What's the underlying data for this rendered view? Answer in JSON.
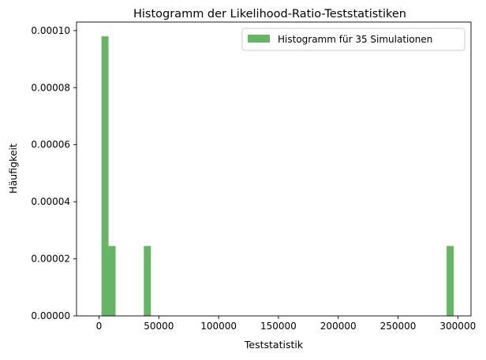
{
  "chart_data": {
    "type": "bar",
    "title": "Histogramm der Likelihood-Ratio-Teststatistiken",
    "xlabel": "Teststatistik",
    "ylabel": "Häufigkeit",
    "xlim": [
      -18800,
      311000
    ],
    "ylim": [
      0,
      0.000103
    ],
    "xticks": [
      0,
      50000,
      100000,
      150000,
      200000,
      250000,
      300000
    ],
    "xtick_labels": [
      "0",
      "50000",
      "100000",
      "150000",
      "200000",
      "250000",
      "300000"
    ],
    "yticks": [
      0,
      2e-05,
      4e-05,
      6e-05,
      8e-05,
      0.0001
    ],
    "ytick_labels": [
      "0.00000",
      "0.00002",
      "0.00004",
      "0.00006",
      "0.00008",
      "0.00010"
    ],
    "grid": false,
    "legend_position": "top-right",
    "series": [
      {
        "name": "Histogramm für 35 Simulationen",
        "color": "#4ca64c",
        "bin_width": 5900,
        "bins": [
          {
            "start": 2050,
            "height": 9.8e-05
          },
          {
            "start": 7950,
            "height": 2.45e-05
          },
          {
            "start": 37450,
            "height": 2.45e-05
          },
          {
            "start": 290600,
            "height": 2.45e-05
          }
        ]
      }
    ]
  }
}
